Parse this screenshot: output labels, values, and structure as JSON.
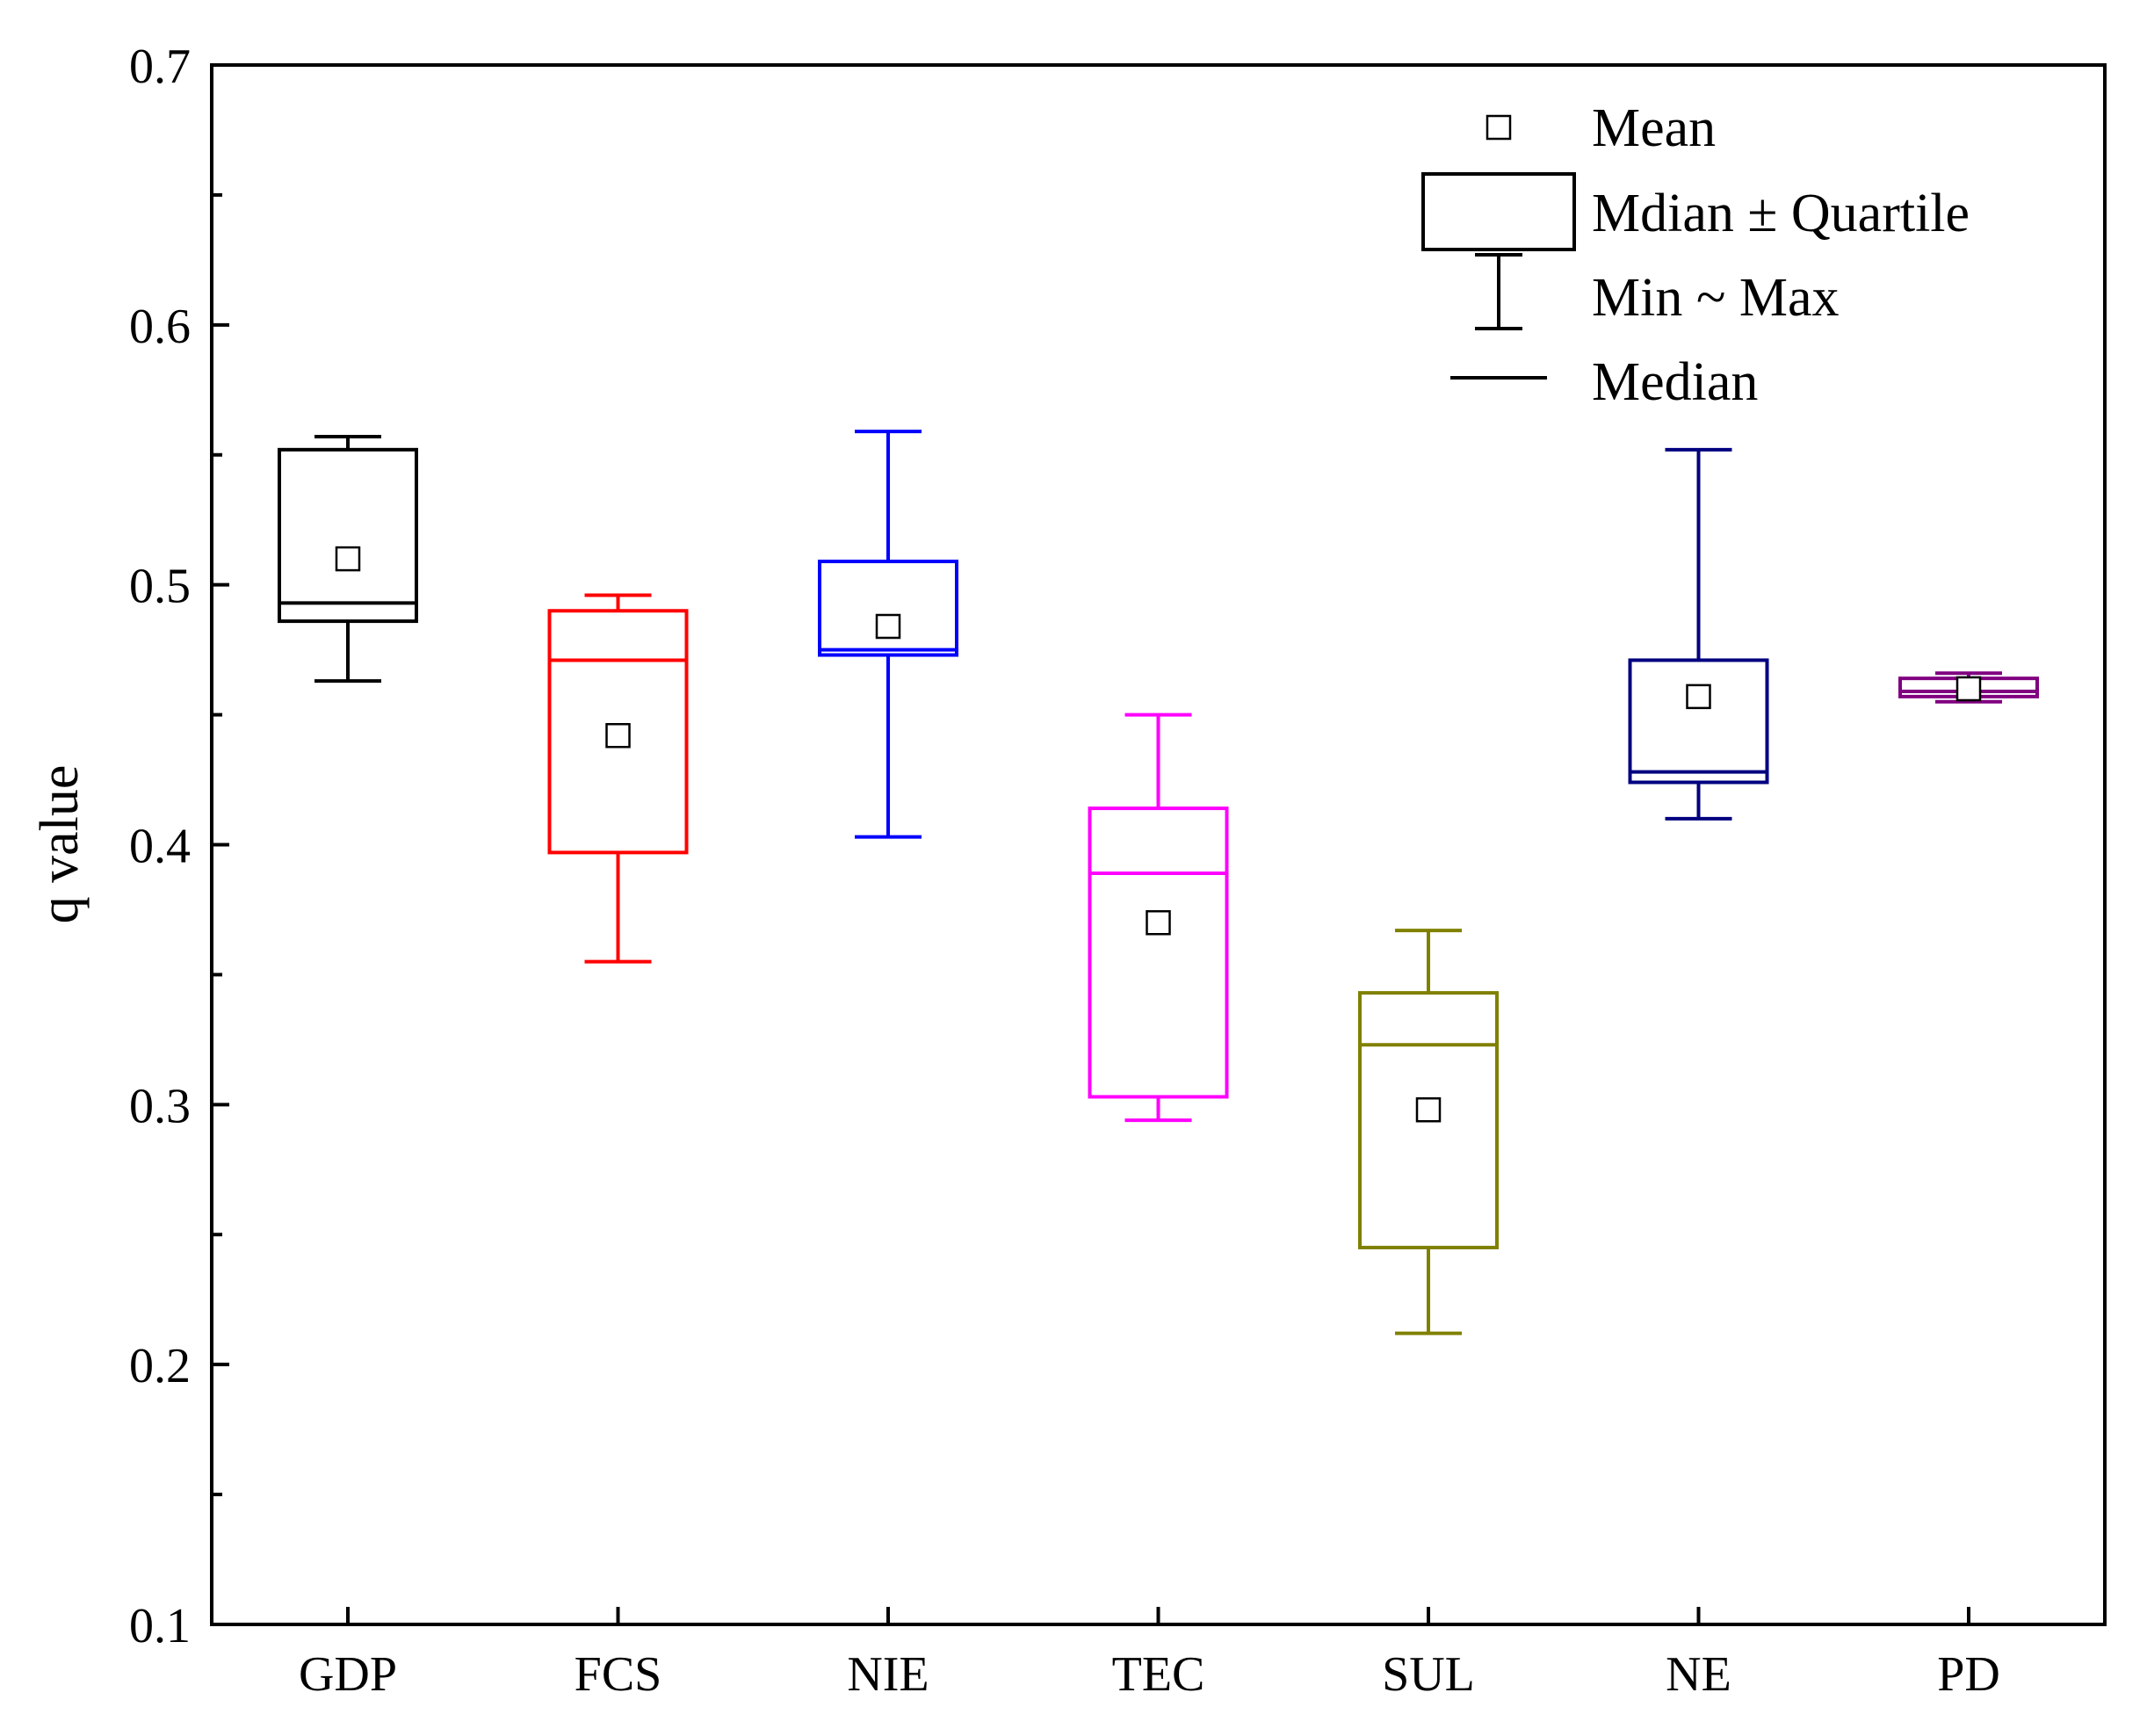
{
  "chart_data": {
    "type": "box",
    "title": "",
    "xlabel": "",
    "ylabel": "q value",
    "ylim": [
      0.1,
      0.7
    ],
    "yticks": [
      "0.1",
      "0.2",
      "0.3",
      "0.4",
      "0.5",
      "0.6",
      "0.7"
    ],
    "grid": false,
    "legend_position": "top-right",
    "legend": [
      {
        "key": "mean",
        "label": "Mean"
      },
      {
        "key": "box",
        "label": "Mdian ± Quartile"
      },
      {
        "key": "range",
        "label": "Min ~ Max"
      },
      {
        "key": "median",
        "label": "Median"
      }
    ],
    "categories": [
      "GDP",
      "FCS",
      "NIE",
      "TEC",
      "SUL",
      "NE",
      "PD"
    ],
    "series": [
      {
        "name": "GDP",
        "color": "#000000",
        "min": 0.463,
        "q1": 0.486,
        "median": 0.493,
        "q3": 0.552,
        "max": 0.557,
        "mean": 0.51
      },
      {
        "name": "FCS",
        "color": "#ff0000",
        "min": 0.355,
        "q1": 0.397,
        "median": 0.471,
        "q3": 0.49,
        "max": 0.496,
        "mean": 0.442
      },
      {
        "name": "NIE",
        "color": "#0000ff",
        "min": 0.403,
        "q1": 0.473,
        "median": 0.475,
        "q3": 0.509,
        "max": 0.559,
        "mean": 0.484
      },
      {
        "name": "TEC",
        "color": "#ff00ff",
        "min": 0.294,
        "q1": 0.303,
        "median": 0.389,
        "q3": 0.414,
        "max": 0.45,
        "mean": 0.37
      },
      {
        "name": "SUL",
        "color": "#808000",
        "min": 0.212,
        "q1": 0.245,
        "median": 0.323,
        "q3": 0.343,
        "max": 0.367,
        "mean": 0.298
      },
      {
        "name": "NE",
        "color": "#000080",
        "min": 0.41,
        "q1": 0.424,
        "median": 0.428,
        "q3": 0.471,
        "max": 0.552,
        "mean": 0.457
      },
      {
        "name": "PD",
        "color": "#800080",
        "min": 0.455,
        "q1": 0.457,
        "median": 0.459,
        "q3": 0.464,
        "max": 0.466,
        "mean": 0.46
      }
    ]
  }
}
